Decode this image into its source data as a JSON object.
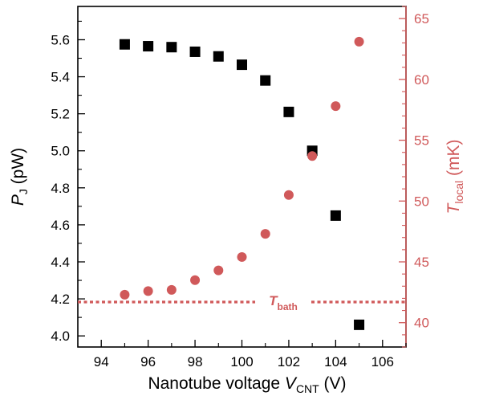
{
  "chart_data": {
    "type": "scatter",
    "title": "",
    "xlabel": {
      "main": "Nanotube voltage ",
      "symbol": "V",
      "sub": "CNT",
      "unit": " (V)"
    },
    "ylabel_left": {
      "symbol": "P",
      "sub": "J",
      "unit": " (pW)"
    },
    "ylabel_right": {
      "symbol": "T",
      "sub": "local",
      "unit": " (mK)"
    },
    "xlim": [
      93,
      107
    ],
    "ylim_left": [
      3.94,
      5.78
    ],
    "ylim_right": [
      38.0,
      66.0
    ],
    "x_ticks": [
      94,
      96,
      98,
      100,
      102,
      104,
      106
    ],
    "y_left_ticks": [
      4.0,
      4.2,
      4.4,
      4.6,
      4.8,
      5.0,
      5.2,
      5.4,
      5.6
    ],
    "y_right_ticks": [
      40,
      45,
      50,
      55,
      60,
      65
    ],
    "series": [
      {
        "axis": "left",
        "marker": "square",
        "color": "#000000",
        "x": [
          95,
          96,
          97,
          98,
          99,
          100,
          101,
          102,
          103,
          104,
          105
        ],
        "y": [
          5.575,
          5.565,
          5.56,
          5.535,
          5.51,
          5.465,
          5.38,
          5.21,
          5.0,
          4.65,
          4.06
        ]
      },
      {
        "axis": "right",
        "marker": "circle",
        "color": "#d0595a",
        "x": [
          95,
          96,
          97,
          98,
          99,
          100,
          101,
          102,
          103,
          104,
          105
        ],
        "y": [
          42.3,
          42.6,
          42.7,
          43.5,
          44.3,
          45.4,
          47.3,
          50.5,
          53.7,
          57.8,
          63.1
        ]
      }
    ],
    "reference_line": {
      "axis": "right",
      "value": 41.7,
      "style": "dotted",
      "color": "#d0595a",
      "label": {
        "symbol": "T",
        "sub": "bath"
      }
    },
    "colors": {
      "left_axis": "#000000",
      "right_axis": "#d0595a"
    }
  }
}
